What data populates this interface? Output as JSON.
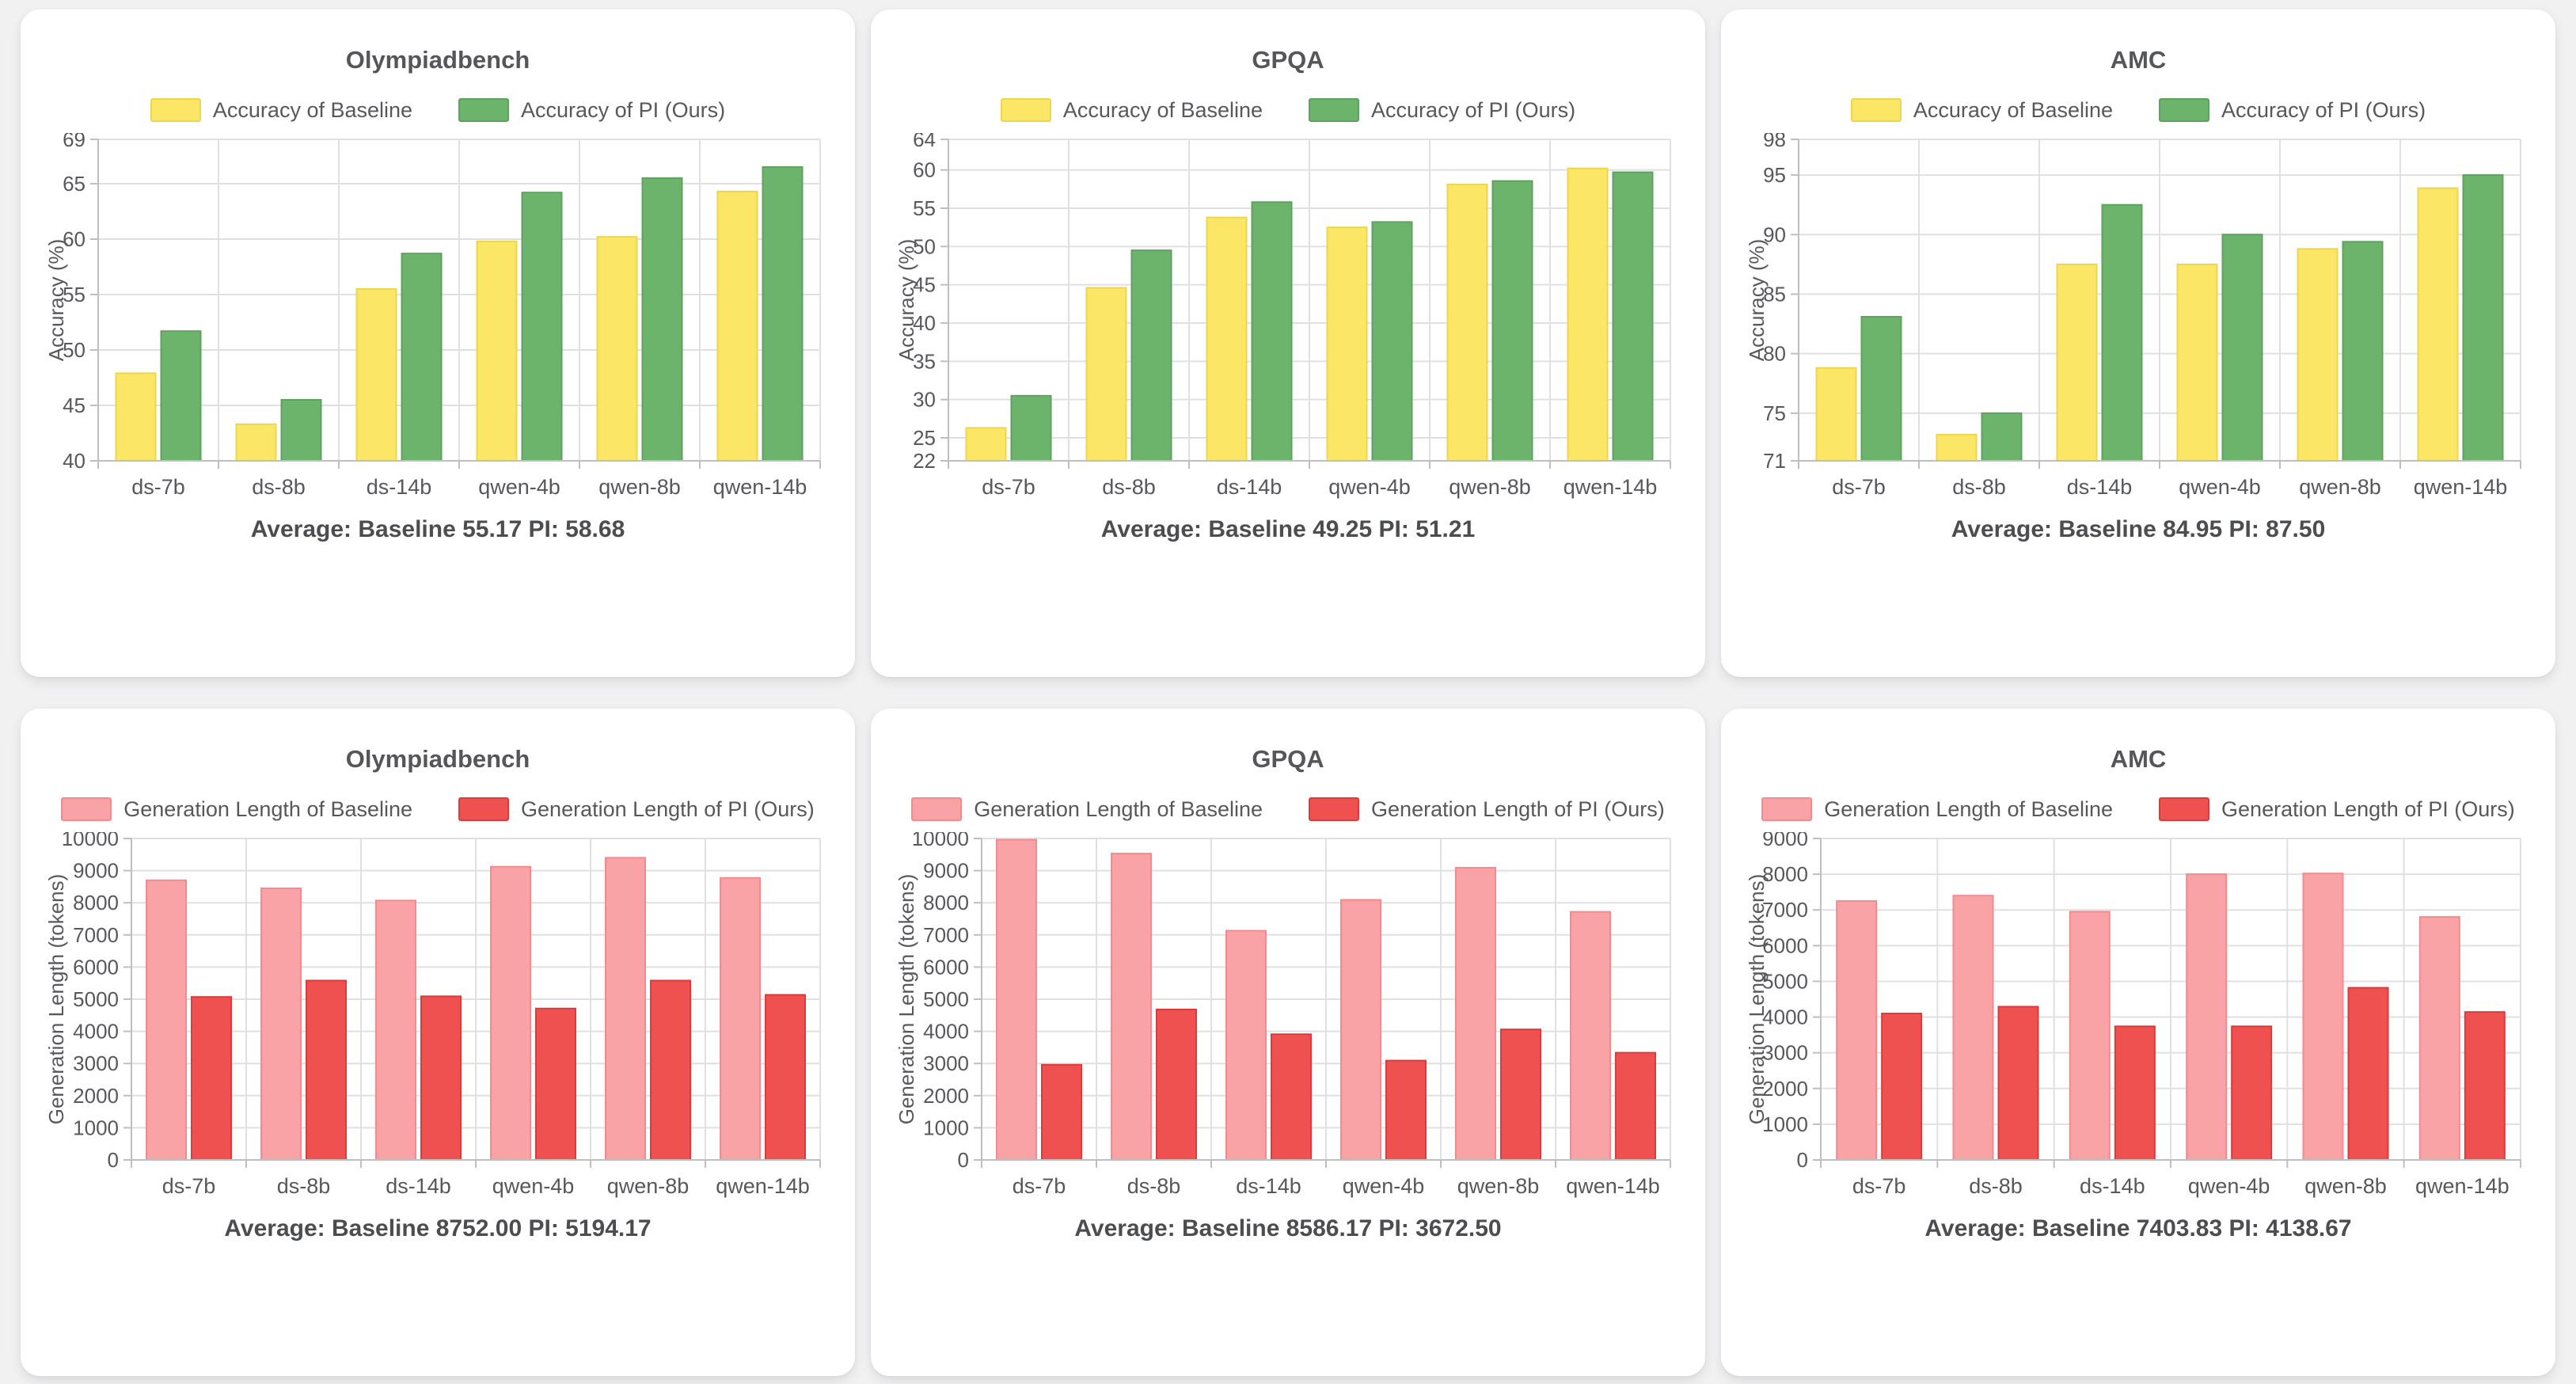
{
  "page": {
    "background_color": "#F1F1F2",
    "card_color": "#FFFFFF"
  },
  "palette": {
    "accuracy_baseline_fill": "#FBE765",
    "accuracy_baseline_border": "#EDD54F",
    "accuracy_pi_fill": "#6CB36C",
    "accuracy_pi_border": "#5FA25F",
    "length_baseline_fill": "#FAA3A6",
    "length_baseline_border": "#F6898E",
    "length_pi_fill": "#EE5150",
    "length_pi_border": "#DC3B3B",
    "grid_line": "#E0E0E0",
    "axis_line": "#BFBFBF",
    "text_color": "#57585C"
  },
  "chart_data": [
    {
      "type": "bar",
      "title": "Olympiadbench",
      "ylabel": "Accuracy (%)",
      "categories": [
        "ds-7b",
        "ds-8b",
        "ds-14b",
        "qwen-4b",
        "qwen-8b",
        "qwen-14b"
      ],
      "series": [
        {
          "name": "Accuracy of Baseline",
          "values": [
            47.9,
            43.3,
            55.5,
            59.8,
            60.2,
            64.3
          ],
          "fill": "#FBE765",
          "border": "#EDD54F"
        },
        {
          "name": "Accuracy of PI (Ours)",
          "values": [
            51.7,
            45.5,
            58.7,
            64.2,
            65.5,
            66.5
          ],
          "fill": "#6CB36C",
          "border": "#5FA25F"
        }
      ],
      "ylim": [
        40,
        69
      ],
      "yticks": [
        40,
        45,
        50,
        55,
        60,
        65,
        69
      ],
      "grid": true,
      "legend_position": "top",
      "average_text": "Average: Baseline 55.17 PI: 58.68"
    },
    {
      "type": "bar",
      "title": "GPQA",
      "ylabel": "Accuracy (%)",
      "categories": [
        "ds-7b",
        "ds-8b",
        "ds-14b",
        "qwen-4b",
        "qwen-8b",
        "qwen-14b"
      ],
      "series": [
        {
          "name": "Accuracy of Baseline",
          "values": [
            26.3,
            44.6,
            53.8,
            52.5,
            58.1,
            60.2
          ],
          "fill": "#FBE765",
          "border": "#EDD54F"
        },
        {
          "name": "Accuracy of PI (Ours)",
          "values": [
            30.5,
            49.5,
            55.8,
            53.2,
            58.56,
            59.7
          ],
          "fill": "#6CB36C",
          "border": "#5FA25F"
        }
      ],
      "ylim": [
        22,
        64
      ],
      "yticks": [
        22,
        25,
        30,
        35,
        40,
        45,
        50,
        55,
        60,
        64
      ],
      "grid": true,
      "legend_position": "top",
      "average_text": "Average: Baseline 49.25 PI: 51.21"
    },
    {
      "type": "bar",
      "title": "AMC",
      "ylabel": "Accuracy (%)",
      "categories": [
        "ds-7b",
        "ds-8b",
        "ds-14b",
        "qwen-4b",
        "qwen-8b",
        "qwen-14b"
      ],
      "series": [
        {
          "name": "Accuracy of Baseline",
          "values": [
            78.8,
            73.2,
            87.5,
            87.5,
            88.8,
            93.9
          ],
          "fill": "#FBE765",
          "border": "#EDD54F"
        },
        {
          "name": "Accuracy of PI (Ours)",
          "values": [
            83.1,
            75.0,
            92.5,
            90.0,
            89.4,
            95.0
          ],
          "fill": "#6CB36C",
          "border": "#5FA25F"
        }
      ],
      "ylim": [
        71,
        98
      ],
      "yticks": [
        71,
        75,
        80,
        85,
        90,
        95,
        98
      ],
      "grid": true,
      "legend_position": "top",
      "average_text": "Average: Baseline 84.95 PI: 87.50"
    },
    {
      "type": "bar",
      "title": "Olympiadbench",
      "ylabel": "Generation Length (tokens)",
      "categories": [
        "ds-7b",
        "ds-8b",
        "ds-14b",
        "qwen-4b",
        "qwen-8b",
        "qwen-14b"
      ],
      "series": [
        {
          "name": "Generation Length of Baseline",
          "values": [
            8700,
            8450,
            8070,
            9120,
            9400,
            8772
          ],
          "fill": "#FAA3A6",
          "border": "#F6898E"
        },
        {
          "name": "Generation Length of PI (Ours)",
          "values": [
            5070,
            5580,
            5090,
            4710,
            5580,
            5135
          ],
          "fill": "#EE5150",
          "border": "#DC3B3B"
        }
      ],
      "ylim": [
        0,
        10000
      ],
      "yticks": [
        0,
        1000,
        2000,
        3000,
        4000,
        5000,
        6000,
        7000,
        8000,
        9000,
        10000
      ],
      "grid": true,
      "legend_position": "top",
      "average_text": "Average: Baseline 8752.00 PI: 5194.17"
    },
    {
      "type": "bar",
      "title": "GPQA",
      "ylabel": "Generation Length (tokens)",
      "categories": [
        "ds-7b",
        "ds-8b",
        "ds-14b",
        "qwen-4b",
        "qwen-8b",
        "qwen-14b"
      ],
      "series": [
        {
          "name": "Generation Length of Baseline",
          "values": [
            9960,
            9530,
            7130,
            8090,
            9090,
            7717
          ],
          "fill": "#FAA3A6",
          "border": "#F6898E"
        },
        {
          "name": "Generation Length of PI (Ours)",
          "values": [
            2960,
            4680,
            3910,
            3090,
            4060,
            3335
          ],
          "fill": "#EE5150",
          "border": "#DC3B3B"
        }
      ],
      "ylim": [
        0,
        10000
      ],
      "yticks": [
        0,
        1000,
        2000,
        3000,
        4000,
        5000,
        6000,
        7000,
        8000,
        9000,
        10000
      ],
      "grid": true,
      "legend_position": "top",
      "average_text": "Average: Baseline 8586.17 PI: 3672.50"
    },
    {
      "type": "bar",
      "title": "AMC",
      "ylabel": "Generation Length (tokens)",
      "categories": [
        "ds-7b",
        "ds-8b",
        "ds-14b",
        "qwen-4b",
        "qwen-8b",
        "qwen-14b"
      ],
      "series": [
        {
          "name": "Generation Length of Baseline",
          "values": [
            7250,
            7400,
            6950,
            8000,
            8020,
            6803
          ],
          "fill": "#FAA3A6",
          "border": "#F6898E"
        },
        {
          "name": "Generation Length of PI (Ours)",
          "values": [
            4100,
            4290,
            3740,
            3740,
            4820,
            4142
          ],
          "fill": "#EE5150",
          "border": "#DC3B3B"
        }
      ],
      "ylim": [
        0,
        9000
      ],
      "yticks": [
        0,
        1000,
        2000,
        3000,
        4000,
        5000,
        6000,
        7000,
        8000,
        9000
      ],
      "grid": true,
      "legend_position": "top",
      "average_text": "Average: Baseline 7403.83 PI: 4138.67"
    }
  ]
}
